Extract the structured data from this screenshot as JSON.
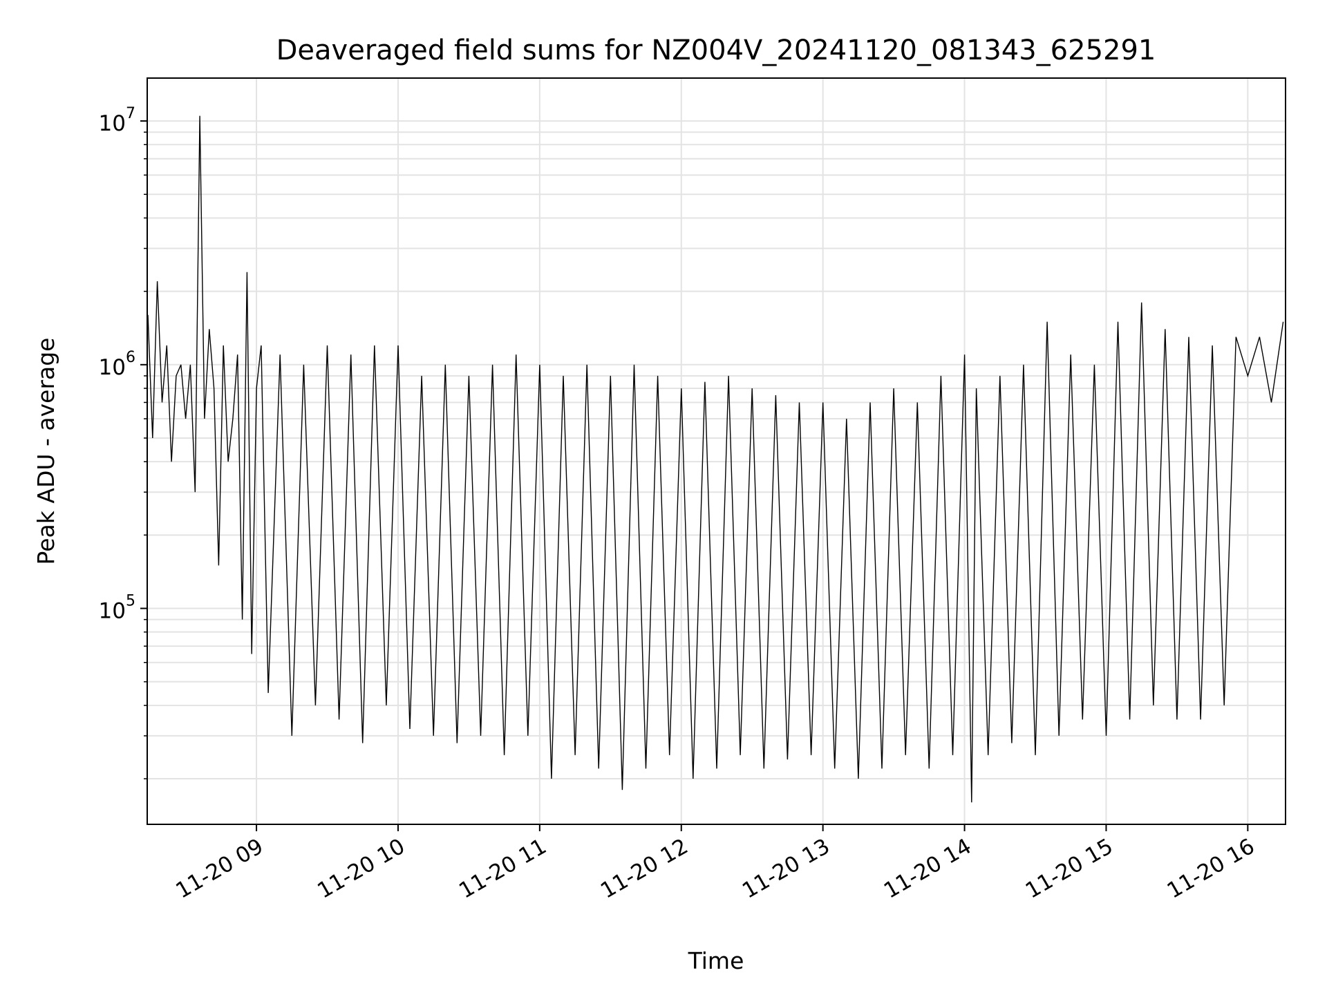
{
  "chart_data": {
    "type": "line",
    "title": "Deaveraged field sums for NZ004V_20241120_081343_625291",
    "xlabel": "Time",
    "ylabel": "Peak ADU - average",
    "yscale": "log",
    "ylim": [
      13000,
      15000000
    ],
    "xlim": [
      "2024-11-20 08:13:43",
      "2024-11-20 16:16:00"
    ],
    "grid": true,
    "legend": "none",
    "line_color": "#000000",
    "grid_color": "#e3e3e3",
    "x_ticks": [
      "11-20 09",
      "11-20 10",
      "11-20 11",
      "11-20 12",
      "11-20 13",
      "11-20 14",
      "11-20 15",
      "11-20 16"
    ],
    "y_ticks": [
      {
        "base": "10",
        "exp": "5",
        "value": 100000
      },
      {
        "base": "10",
        "exp": "6",
        "value": 1000000
      },
      {
        "base": "10",
        "exp": "7",
        "value": 10000000
      }
    ],
    "series": [
      {
        "x": [
          "08:14",
          "08:16",
          "08:18",
          "08:20",
          "08:22",
          "08:24",
          "08:26",
          "08:28",
          "08:30",
          "08:32",
          "08:34",
          "08:36",
          "08:38",
          "08:40",
          "08:42",
          "08:44",
          "08:46",
          "08:48",
          "08:50",
          "08:52",
          "08:54",
          "08:56",
          "08:58",
          "09:00",
          "09:02",
          "09:05",
          "09:10",
          "09:15",
          "09:20",
          "09:25",
          "09:30",
          "09:35",
          "09:40",
          "09:45",
          "09:50",
          "09:55",
          "10:00",
          "10:05",
          "10:10",
          "10:15",
          "10:20",
          "10:25",
          "10:30",
          "10:35",
          "10:40",
          "10:45",
          "10:50",
          "10:55",
          "11:00",
          "11:05",
          "11:10",
          "11:15",
          "11:20",
          "11:25",
          "11:30",
          "11:35",
          "11:40",
          "11:45",
          "11:50",
          "11:55",
          "12:00",
          "12:05",
          "12:10",
          "12:15",
          "12:20",
          "12:25",
          "12:30",
          "12:35",
          "12:40",
          "12:45",
          "12:50",
          "12:55",
          "13:00",
          "13:05",
          "13:10",
          "13:15",
          "13:20",
          "13:25",
          "13:30",
          "13:35",
          "13:40",
          "13:45",
          "13:50",
          "13:55",
          "14:00",
          "14:03",
          "14:05",
          "14:10",
          "14:15",
          "14:20",
          "14:25",
          "14:30",
          "14:35",
          "14:40",
          "14:45",
          "14:50",
          "14:55",
          "15:00",
          "15:05",
          "15:10",
          "15:15",
          "15:20",
          "15:25",
          "15:30",
          "15:35",
          "15:40",
          "15:45",
          "15:50",
          "15:55",
          "16:00",
          "16:05",
          "16:10",
          "16:15"
        ],
        "y": [
          1600000,
          500000,
          2200000,
          700000,
          1200000,
          400000,
          900000,
          1000000,
          600000,
          1000000,
          300000,
          10500000,
          600000,
          1400000,
          800000,
          150000,
          1200000,
          400000,
          600000,
          1100000,
          90000,
          2400000,
          65000,
          800000,
          1200000,
          45000,
          1100000,
          30000,
          1000000,
          40000,
          1200000,
          35000,
          1100000,
          28000,
          1200000,
          40000,
          1200000,
          32000,
          900000,
          30000,
          1000000,
          28000,
          900000,
          30000,
          1000000,
          25000,
          1100000,
          30000,
          1000000,
          20000,
          900000,
          25000,
          1000000,
          22000,
          900000,
          18000,
          1000000,
          22000,
          900000,
          25000,
          800000,
          20000,
          850000,
          22000,
          900000,
          25000,
          800000,
          22000,
          750000,
          24000,
          700000,
          25000,
          700000,
          22000,
          600000,
          20000,
          700000,
          22000,
          800000,
          25000,
          700000,
          22000,
          900000,
          25000,
          1100000,
          16000,
          800000,
          25000,
          900000,
          28000,
          1000000,
          25000,
          1500000,
          30000,
          1100000,
          35000,
          1000000,
          30000,
          1500000,
          35000,
          1800000,
          40000,
          1400000,
          35000,
          1300000,
          35000,
          1200000,
          40000,
          1300000,
          900000,
          1300000,
          700000,
          1500000
        ]
      }
    ]
  }
}
